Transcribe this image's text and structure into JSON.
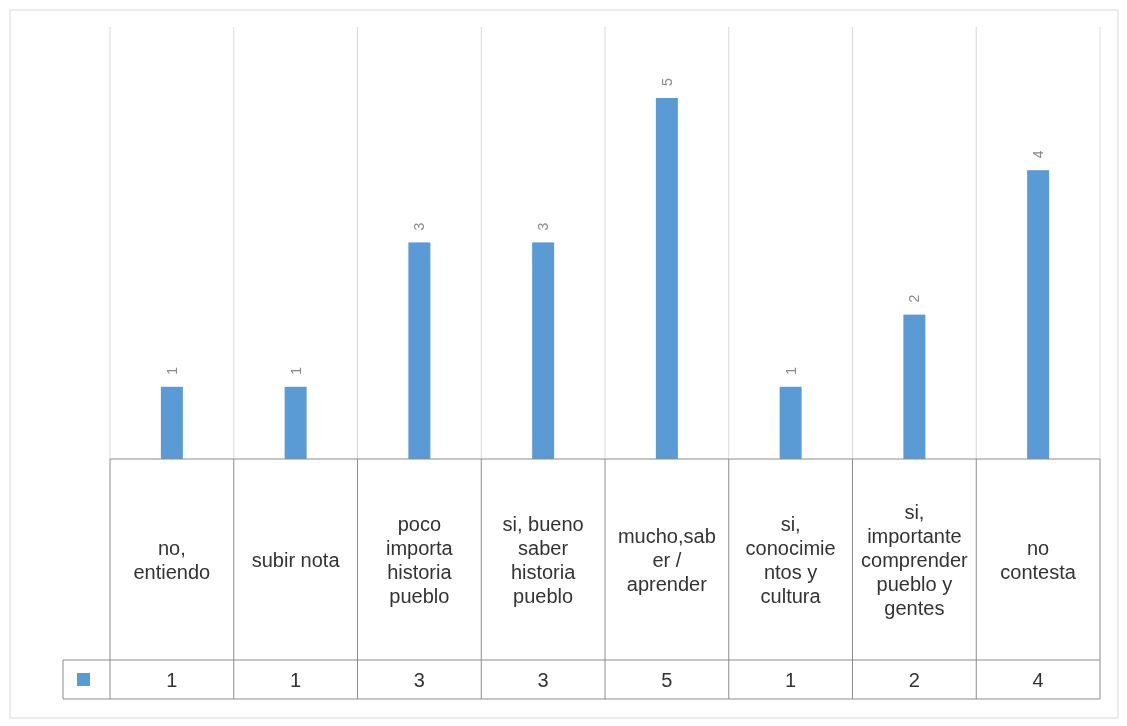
{
  "chart_data": {
    "type": "bar",
    "categories": [
      "no, entiendo",
      "subir nota",
      "poco importa historia pueblo",
      "si, bueno saber historia pueblo",
      "mucho,saber / aprender",
      "si, conocimientos y cultura",
      "si, importante comprender pueblo y gentes",
      "no contesta"
    ],
    "values": [
      1,
      1,
      3,
      3,
      5,
      1,
      2,
      4
    ],
    "value_labels": [
      "1",
      "1",
      "3",
      "3",
      "5",
      "1",
      "2",
      "4"
    ],
    "color": "#5b9bd5",
    "data_labels": true,
    "grid": "x"
  }
}
